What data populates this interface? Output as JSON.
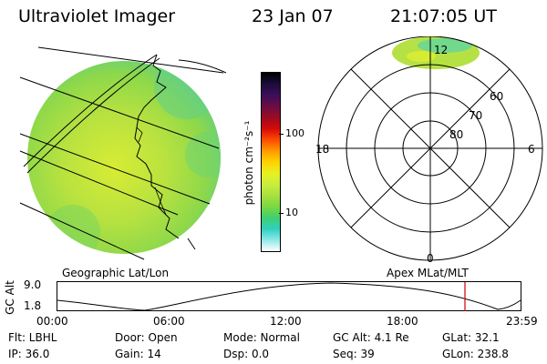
{
  "header": {
    "instrument": "Ultraviolet Imager",
    "date": "23 Jan 07",
    "time": "21:07:05 UT"
  },
  "colorbar": {
    "unit_label": "photon cm⁻²s⁻¹",
    "ticks": [
      "100",
      "10"
    ],
    "colors": [
      "#000000",
      "#1c0c3c",
      "#3a0f58",
      "#6a0d45",
      "#9a0b22",
      "#d40a0a",
      "#ff4a00",
      "#ff9a00",
      "#ffd200",
      "#e8f020",
      "#c8ee40",
      "#a8e040",
      "#7ad840",
      "#40d070",
      "#30d0c0",
      "#90e8e8",
      "#ffffff"
    ]
  },
  "left_panel": {
    "caption": "Geographic Lat/Lon"
  },
  "right_panel": {
    "caption": "Apex MLat/MLT",
    "mlt_labels": {
      "top": "12",
      "left": "18",
      "right": "6",
      "bottom": "0"
    },
    "lat_labels": [
      "60",
      "70",
      "80"
    ]
  },
  "altitude_plot": {
    "ylabel": "GC Alt",
    "y_ticks": [
      "9.0",
      "1.8"
    ],
    "x_ticks": [
      "00:00",
      "06:00",
      "12:00",
      "18:00",
      "23:59"
    ],
    "marker_time_hours": 21.12,
    "marker_color": "#d00000"
  },
  "info": {
    "row1": {
      "filter": "Flt: LBHL",
      "door": "Door: Open",
      "mode": "Mode: Normal",
      "gc_alt": "GC Alt: 4.1 Re",
      "glat": "GLat:  32.1"
    },
    "row2": {
      "ip": "IP: 36.0",
      "gain": "Gain: 14",
      "dsp": "Dsp:    0.0",
      "seq": "Seq: 39",
      "glon": "GLon: 238.8"
    }
  }
}
